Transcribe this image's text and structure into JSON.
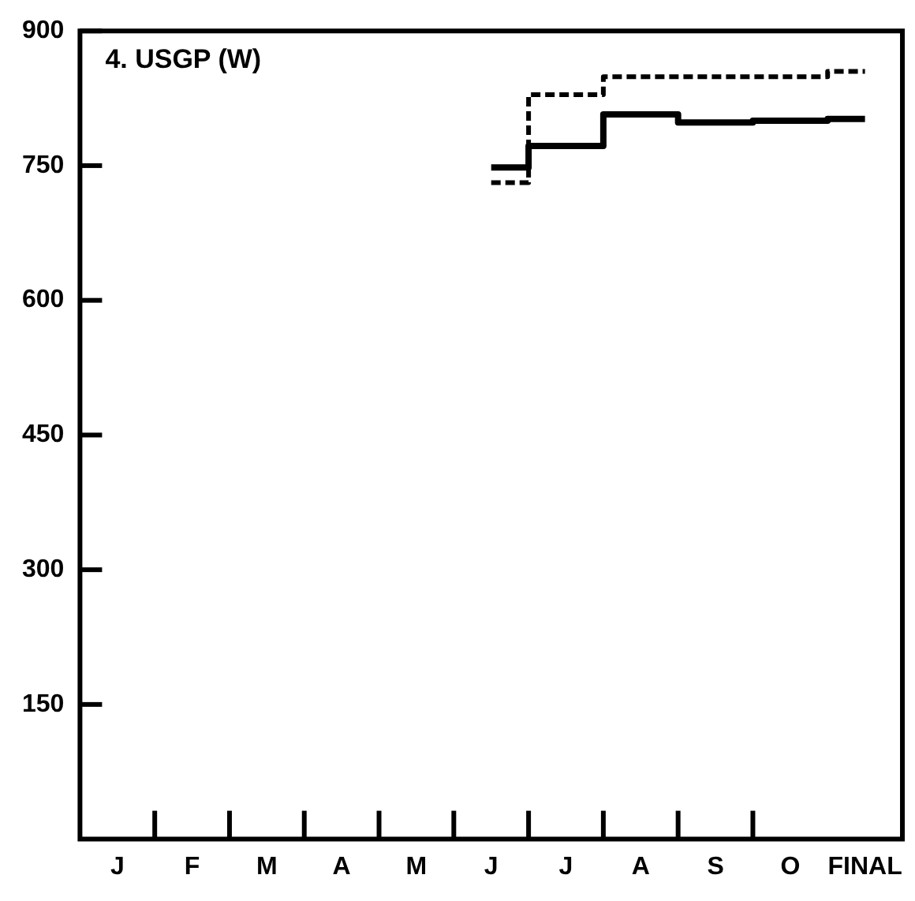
{
  "chart_data": {
    "type": "step",
    "title": "4. USGP (W)",
    "categories": [
      "J",
      "F",
      "M",
      "A",
      "M",
      "J",
      "J",
      "A",
      "S",
      "O",
      "FINAL"
    ],
    "series": [
      {
        "color": "#000000",
        "line_style": "solid",
        "values": [
          null,
          null,
          null,
          null,
          null,
          748,
          772,
          807,
          798,
          800,
          802
        ]
      },
      {
        "color": "#000000",
        "line_style": "dashed",
        "values": [
          null,
          null,
          null,
          null,
          null,
          731,
          829,
          849,
          849,
          849,
          855
        ]
      }
    ],
    "ylim": [
      0,
      900
    ],
    "yticks": [
      150,
      300,
      450,
      600,
      750,
      900
    ],
    "grid": false,
    "legend": false
  }
}
